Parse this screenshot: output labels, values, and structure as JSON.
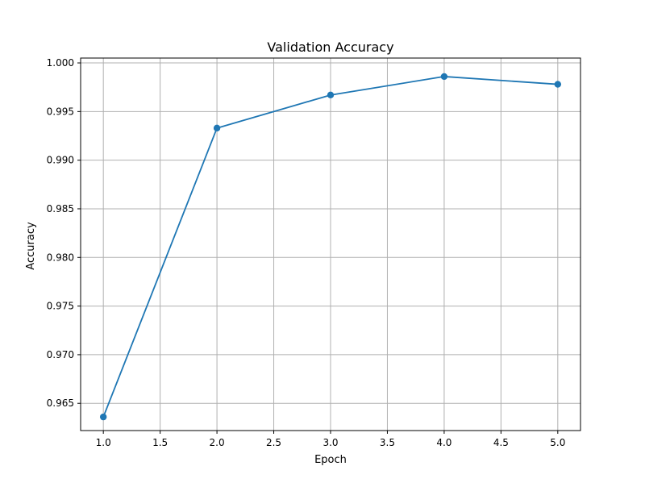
{
  "chart_data": {
    "type": "line",
    "title": "Validation Accuracy",
    "xlabel": "Epoch",
    "ylabel": "Accuracy",
    "xlim": [
      0.8,
      5.2
    ],
    "ylim": [
      0.9622,
      1.0005
    ],
    "grid": true,
    "x_ticks": [
      1.0,
      1.5,
      2.0,
      2.5,
      3.0,
      3.5,
      4.0,
      4.5,
      5.0
    ],
    "x_tick_labels": [
      "1.0",
      "1.5",
      "2.0",
      "2.5",
      "3.0",
      "3.5",
      "4.0",
      "4.5",
      "5.0"
    ],
    "y_ticks": [
      0.965,
      0.97,
      0.975,
      0.98,
      0.985,
      0.99,
      0.995,
      1.0
    ],
    "y_tick_labels": [
      "0.965",
      "0.970",
      "0.975",
      "0.980",
      "0.985",
      "0.990",
      "0.995",
      "1.000"
    ],
    "series": [
      {
        "x": [
          1,
          2,
          3,
          4,
          5
        ],
        "y": [
          0.9636,
          0.9933,
          0.9967,
          0.9986,
          0.9978
        ],
        "color": "#1f77b4",
        "marker": "circle"
      }
    ],
    "colors": {
      "grid": "#b0b0b0",
      "axes": "#000000",
      "line": "#1f77b4"
    }
  }
}
